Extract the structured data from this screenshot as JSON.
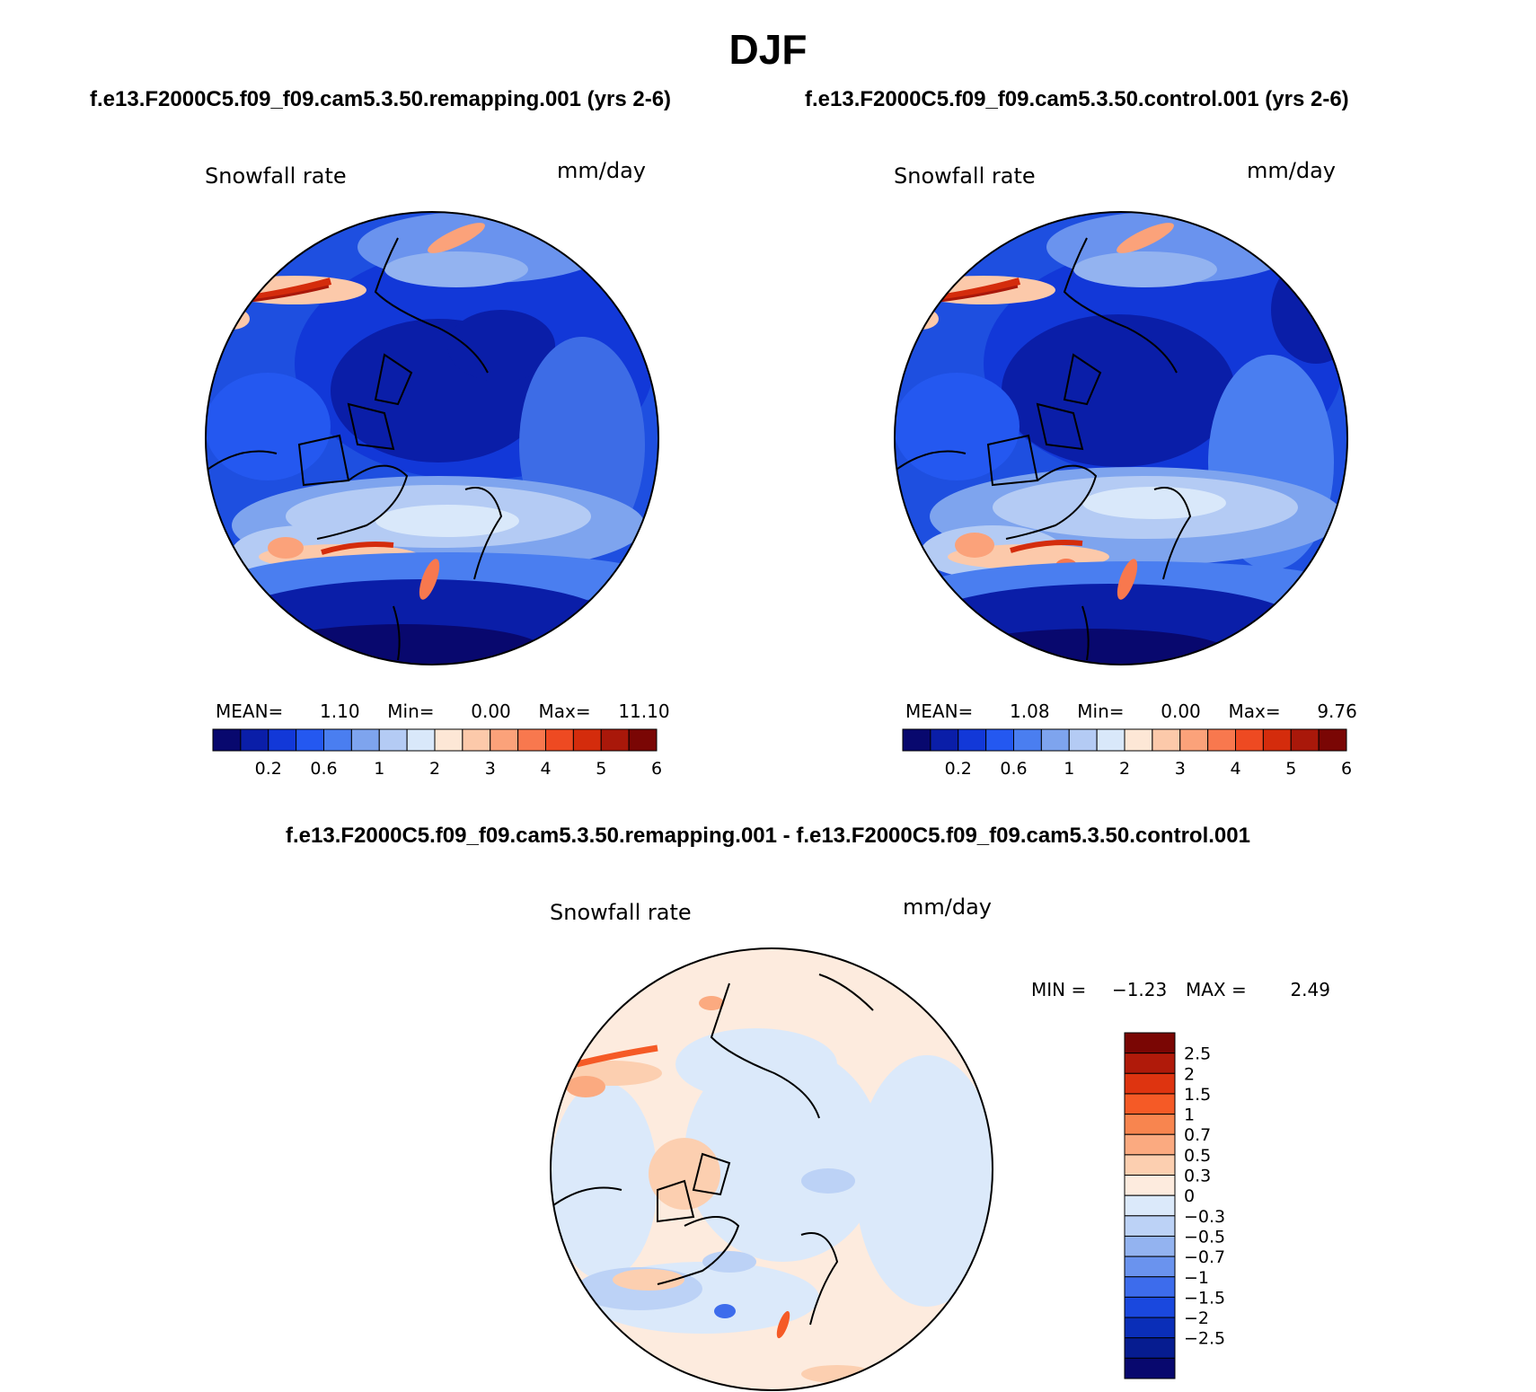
{
  "title": "DJF",
  "panels": [
    {
      "case_title": "f.e13.F2000C5.f09_f09.cam5.3.50.remapping.001 (yrs 2-6)",
      "variable": "Snowfall rate",
      "units": "mm/day",
      "stats": {
        "mean_label": "MEAN=",
        "mean": "1.10",
        "min_label": "Min=",
        "min": "0.00",
        "max_label": "Max=",
        "max": "11.10"
      }
    },
    {
      "case_title": "f.e13.F2000C5.f09_f09.cam5.3.50.control.001 (yrs 2-6)",
      "variable": "Snowfall rate",
      "units": "mm/day",
      "stats": {
        "mean_label": "MEAN=",
        "mean": "1.08",
        "min_label": "Min=",
        "min": "0.00",
        "max_label": "Max=",
        "max": "9.76"
      }
    }
  ],
  "colorbar_abs": {
    "colors": [
      "#08086e",
      "#0a1ea8",
      "#1238d8",
      "#2458f0",
      "#4a7ef0",
      "#7ea4ee",
      "#b4cbf4",
      "#d9e8fa",
      "#fde7d6",
      "#fcc9aa",
      "#fba27a",
      "#f8784e",
      "#ee4a22",
      "#d42c0c",
      "#a9180a",
      "#7a0604"
    ],
    "tick_labels": [
      "0.2",
      "0.6",
      "1",
      "2",
      "3",
      "4",
      "5",
      "6"
    ]
  },
  "diff_panel": {
    "title": "f.e13.F2000C5.f09_f09.cam5.3.50.remapping.001 - f.e13.F2000C5.f09_f09.cam5.3.50.control.001",
    "variable": "Snowfall rate",
    "units": "mm/day",
    "min_label": "MIN =",
    "min": "−1.23",
    "max_label": "MAX =",
    "max": "2.49"
  },
  "colorbar_diff": {
    "colors": [
      "#7a0604",
      "#b01a0a",
      "#de3410",
      "#f55a26",
      "#f8854f",
      "#fbaa80",
      "#fccfb0",
      "#fdebde",
      "#dbe9fa",
      "#bcd2f6",
      "#93b3f0",
      "#6a93ee",
      "#3d6cec",
      "#1a48de",
      "#0a2eb8",
      "#061c90",
      "#08086e"
    ],
    "tick_labels": [
      "2.5",
      "2",
      "1.5",
      "1",
      "0.7",
      "0.5",
      "0.3",
      "0",
      "−0.3",
      "−0.5",
      "−0.7",
      "−1",
      "−1.5",
      "−2",
      "−2.5"
    ]
  }
}
